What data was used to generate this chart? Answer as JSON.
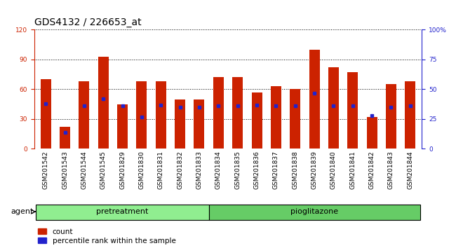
{
  "title": "GDS4132 / 226653_at",
  "categories": [
    "GSM201542",
    "GSM201543",
    "GSM201544",
    "GSM201545",
    "GSM201829",
    "GSM201830",
    "GSM201831",
    "GSM201832",
    "GSM201833",
    "GSM201834",
    "GSM201835",
    "GSM201836",
    "GSM201837",
    "GSM201838",
    "GSM201839",
    "GSM201840",
    "GSM201841",
    "GSM201842",
    "GSM201843",
    "GSM201844"
  ],
  "count_values": [
    70,
    22,
    68,
    93,
    45,
    68,
    68,
    50,
    50,
    72,
    72,
    57,
    63,
    60,
    100,
    82,
    77,
    32,
    65,
    68
  ],
  "percentile_values": [
    38,
    14,
    36,
    42,
    36,
    27,
    37,
    35,
    35,
    36,
    36,
    37,
    36,
    36,
    47,
    36,
    36,
    28,
    35,
    36
  ],
  "group_configs": [
    {
      "label": "pretreatment",
      "start": 0,
      "end": 9,
      "color": "#90EE90"
    },
    {
      "label": "pioglitazone",
      "start": 9,
      "end": 20,
      "color": "#66CC66"
    }
  ],
  "group_label": "agent",
  "bar_color": "#CC2200",
  "percentile_color": "#2222CC",
  "bar_width": 0.55,
  "ylim_left": [
    0,
    120
  ],
  "ylim_right": [
    0,
    100
  ],
  "yticks_left": [
    0,
    30,
    60,
    90,
    120
  ],
  "yticks_right": [
    0,
    25,
    50,
    75,
    100
  ],
  "ytick_labels_right": [
    "0",
    "25",
    "50",
    "75",
    "100%"
  ],
  "bg_color": "#ffffff",
  "legend_count_label": "count",
  "legend_pct_label": "percentile rank within the sample",
  "title_fontsize": 10,
  "tick_fontsize": 6.5,
  "label_fontsize": 8
}
